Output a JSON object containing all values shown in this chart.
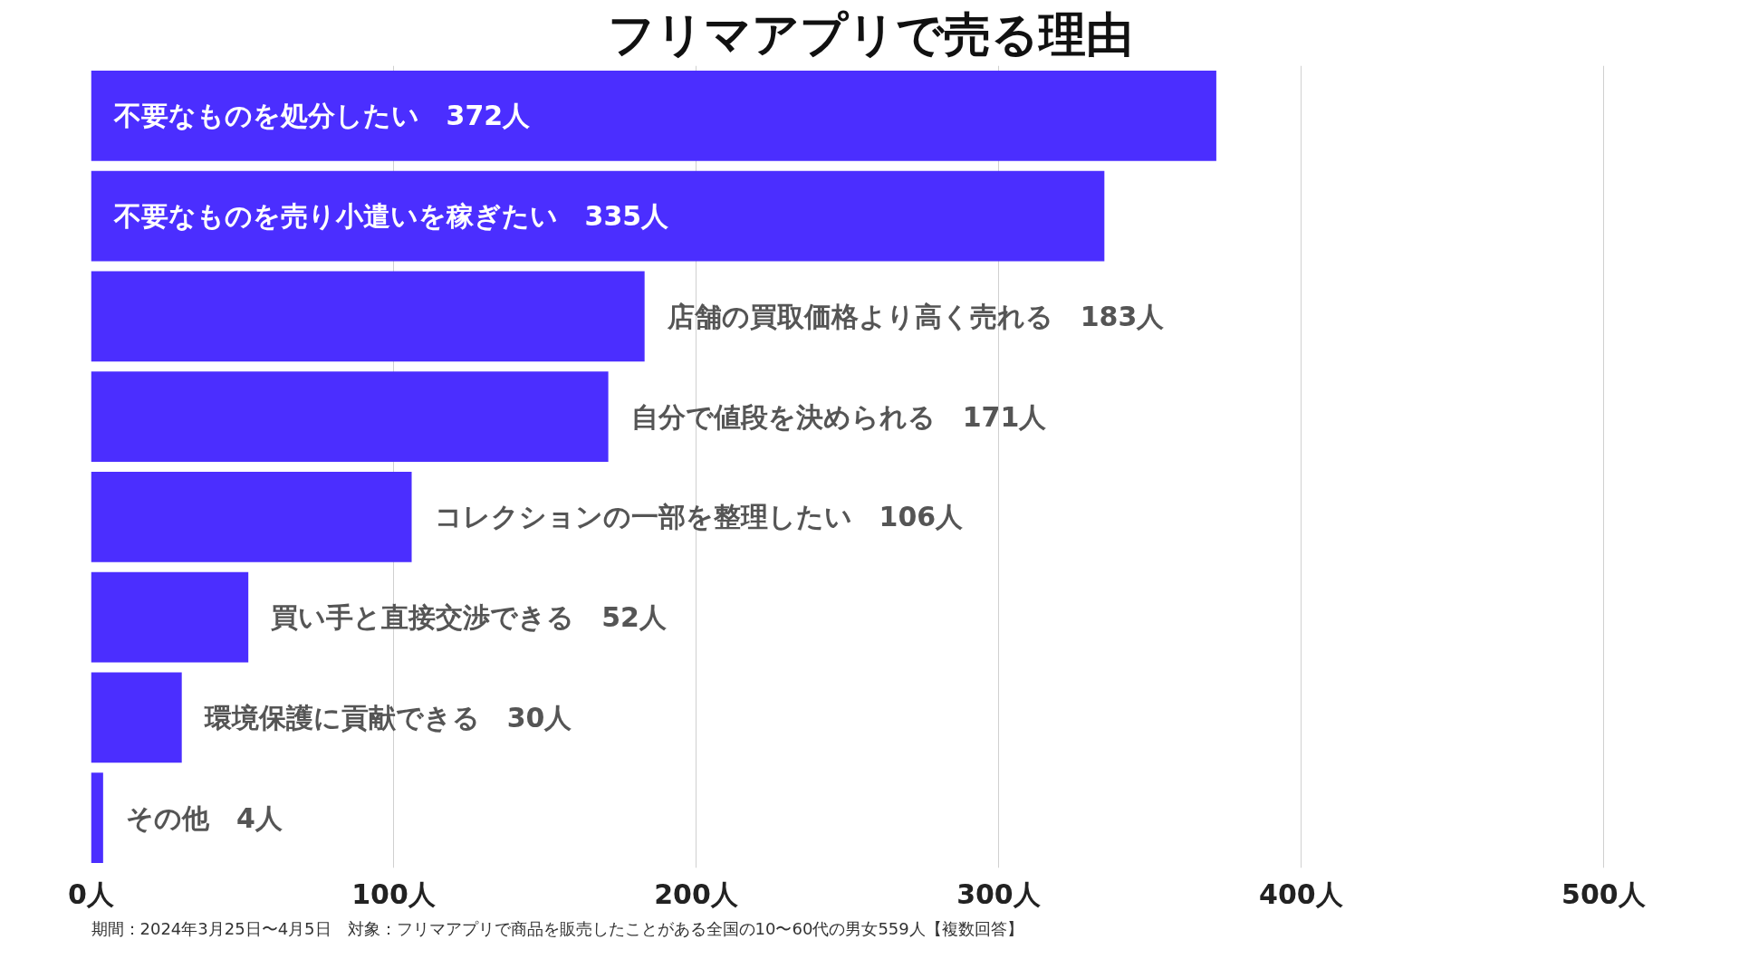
{
  "chart_data": {
    "type": "bar",
    "orientation": "horizontal",
    "title": "フリマアプリで売る理由",
    "categories": [
      "不要なものを処分したい",
      "不要なものを売り小遣いを稼ぎたい",
      "店舗の買取価格より高く売れる",
      "自分で値段を決められる",
      "コレクションの一部を整理したい",
      "買い手と直接交渉できる",
      "環境保護に貢献できる",
      "その他"
    ],
    "values": [
      372,
      335,
      183,
      171,
      106,
      52,
      30,
      4
    ],
    "value_labels": [
      "372人",
      "335人",
      "183人",
      "171人",
      "106人",
      "52人",
      "30人",
      "4人"
    ],
    "color": "#4b2eff",
    "xlim": [
      0,
      500
    ],
    "xticks": [
      {
        "value": 0,
        "label": "0人"
      },
      {
        "value": 100,
        "label": "100人"
      },
      {
        "value": 200,
        "label": "200人"
      },
      {
        "value": 300,
        "label": "300人"
      },
      {
        "value": 400,
        "label": "400人"
      },
      {
        "value": 500,
        "label": "500人"
      }
    ],
    "grid": "x",
    "annotations": [
      "期間：2024年3月25日〜4月5日　対象：フリマアプリで商品を販売したことがある全国の10〜60代の男女559人【複数回答】"
    ]
  }
}
